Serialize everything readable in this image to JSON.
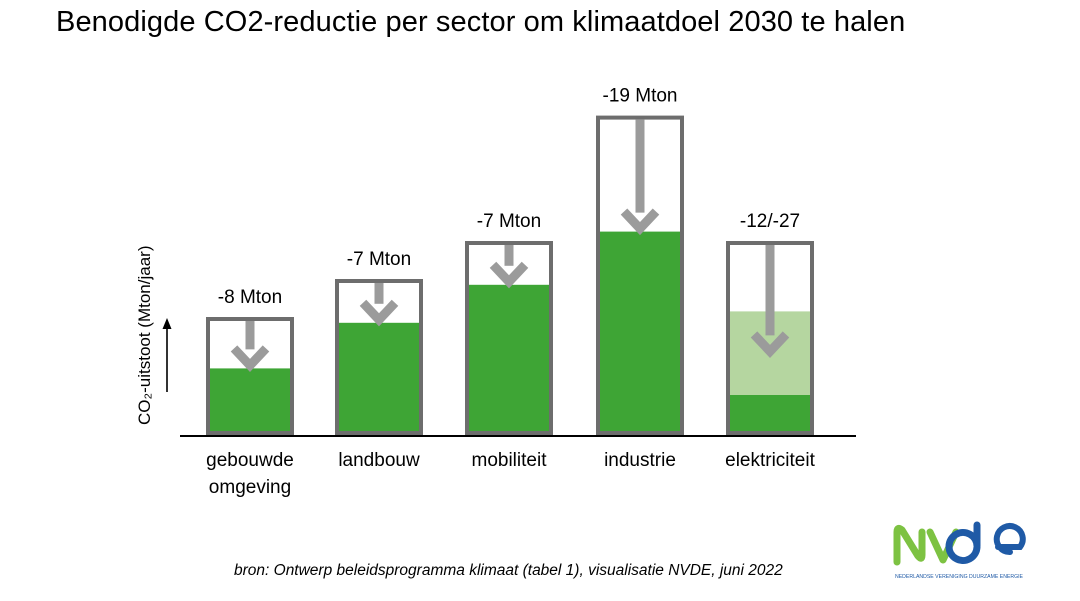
{
  "title": "Benodigde CO2-reductie per sector om klimaatdoel 2030 te halen",
  "source": "bron: Ontwerp beleidsprogramma klimaat (tabel 1), visualisatie NVDE, juni 2022",
  "logo": {
    "text": "NVDE",
    "tagline": "NEDERLANDSE VERENIGING DUURZAME ENERGIE"
  },
  "colors": {
    "green": "#3ea535",
    "light_green": "#b5d6a0",
    "box": "#6d6d6d",
    "arrow": "#9b9b9b",
    "logo_green": "#7dc242",
    "logo_blue": "#1f5aa6"
  },
  "chart_data": {
    "type": "bar",
    "title": "",
    "ylabel": "CO₂-uitstoot (Mton/jaar)",
    "xlabel": "",
    "y_ticks_shown": false,
    "bars": [
      {
        "category": "gebouwde omgeving",
        "total": 30,
        "remaining": 17,
        "reduction_label": "-8 Mton"
      },
      {
        "category": "landbouw",
        "total": 40,
        "remaining": 29,
        "reduction_label": "-7 Mton"
      },
      {
        "category": "mobiliteit",
        "total": 50,
        "remaining": 39,
        "reduction_label": "-7 Mton"
      },
      {
        "category": "industrie",
        "total": 83,
        "remaining": 53,
        "reduction_label": "-19 Mton"
      },
      {
        "category": "elektriciteit",
        "total": 50,
        "remaining_min": 32,
        "remaining_max": 10,
        "reduction_label": "-12/-27"
      }
    ]
  }
}
